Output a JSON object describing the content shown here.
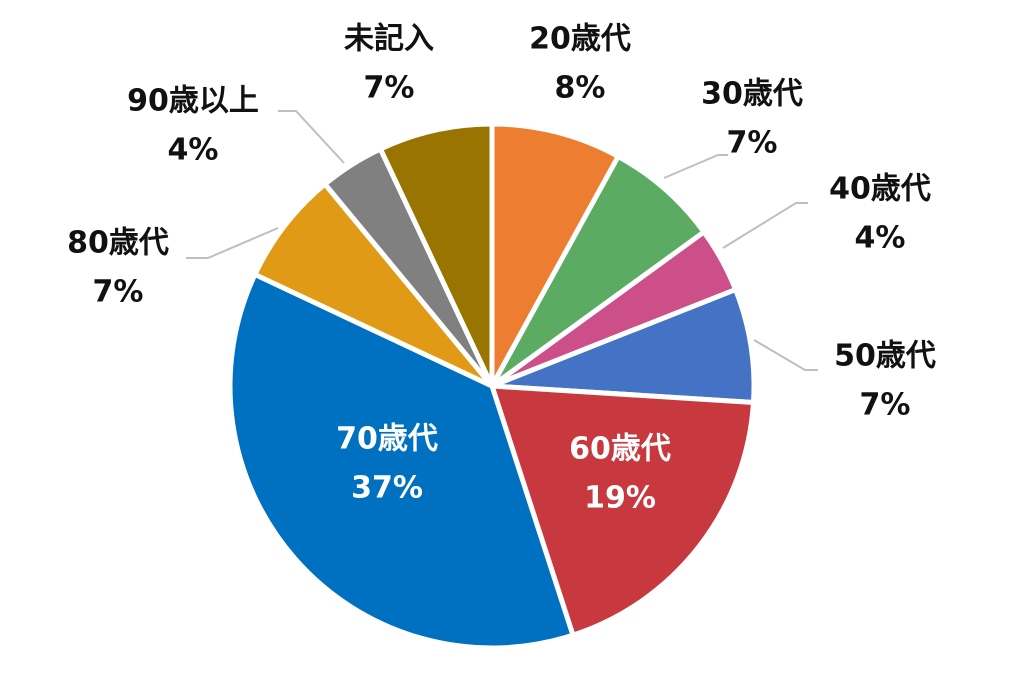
{
  "chart_data": {
    "type": "pie",
    "title": "",
    "slices": [
      {
        "label": "20歳代",
        "value": 8,
        "percent_label": "8%",
        "color": "#ED7D31",
        "label_color": "#111111"
      },
      {
        "label": "30歳代",
        "value": 7,
        "percent_label": "7%",
        "color": "#5BAB62",
        "label_color": "#111111"
      },
      {
        "label": "40歳代",
        "value": 4,
        "percent_label": "4%",
        "color": "#CC4F8A",
        "label_color": "#111111"
      },
      {
        "label": "50歳代",
        "value": 7,
        "percent_label": "7%",
        "color": "#4472C4",
        "label_color": "#111111"
      },
      {
        "label": "60歳代",
        "value": 19,
        "percent_label": "19%",
        "color": "#C8393F",
        "label_color": "#ffffff"
      },
      {
        "label": "70歳代",
        "value": 37,
        "percent_label": "37%",
        "color": "#0070C0",
        "label_color": "#ffffff"
      },
      {
        "label": "80歳代",
        "value": 7,
        "percent_label": "7%",
        "color": "#E09A15",
        "label_color": "#111111"
      },
      {
        "label": "90歳以上",
        "value": 4,
        "percent_label": "4%",
        "color": "#808080",
        "label_color": "#111111"
      },
      {
        "label": "未記入",
        "value": 7,
        "percent_label": "7%",
        "color": "#9A7400",
        "label_color": "#111111"
      }
    ],
    "start_direction": "12 o'clock",
    "direction": "clockwise",
    "leader_line_color": "#BFBFBF",
    "legend": "none",
    "data_labels": "category and percent"
  }
}
